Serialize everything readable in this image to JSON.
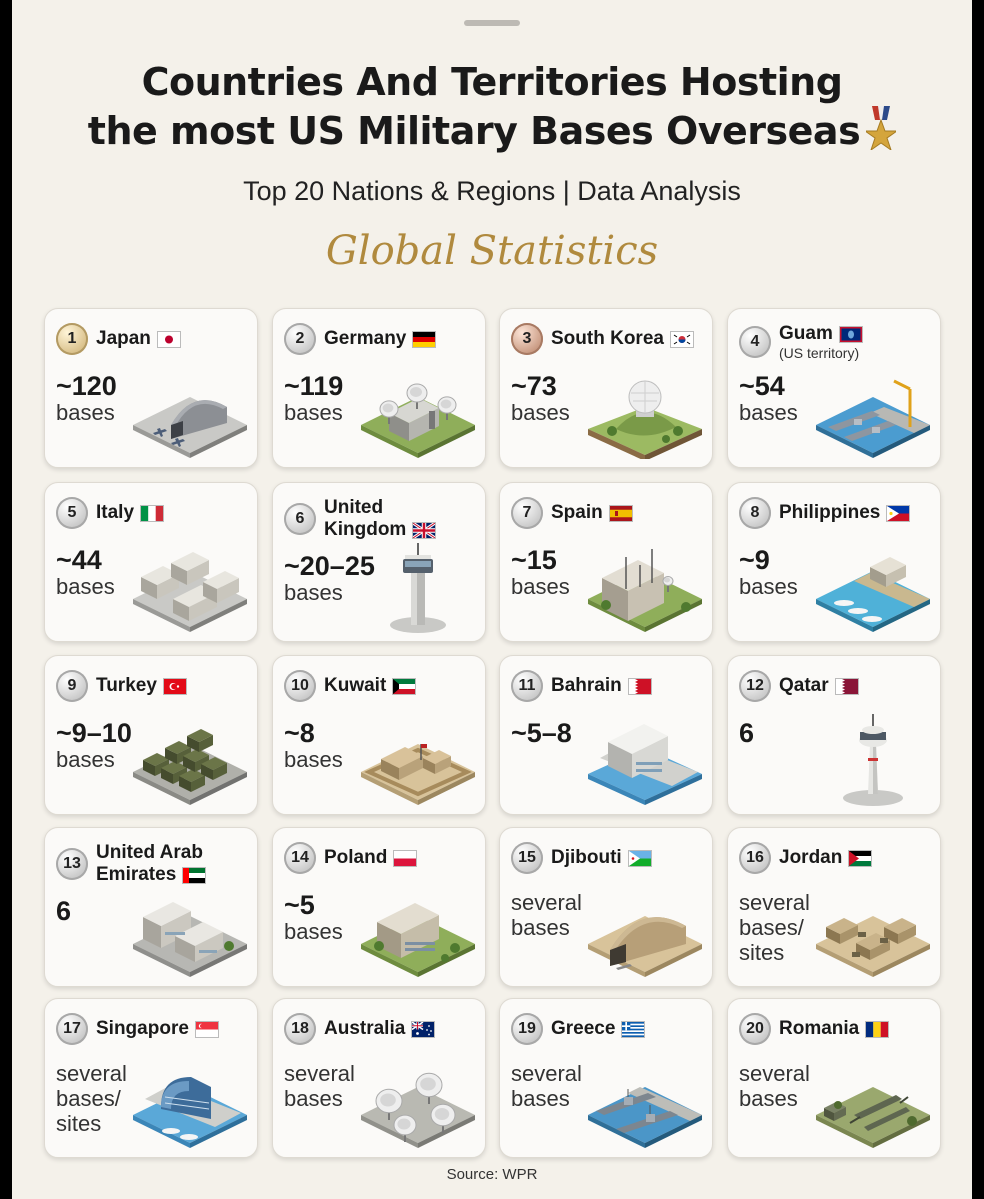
{
  "header": {
    "title_line1": "Countries And Territories Hosting",
    "title_line2": "the most US Military Bases Overseas",
    "medal_icon": "medal-icon",
    "subtitle": "Top 20 Nations & Regions | Data Analysis",
    "section_title": "Global Statistics"
  },
  "countries": [
    {
      "rank": "1",
      "name": "Japan",
      "value": "~120",
      "unit": "bases",
      "flag": "japan-flag",
      "scene": "hangar-jets"
    },
    {
      "rank": "2",
      "name": "Germany",
      "value": "~119",
      "unit": "bases",
      "flag": "germany-flag",
      "scene": "radar-base"
    },
    {
      "rank": "3",
      "name": "South Korea",
      "value": "~73",
      "unit": "bases",
      "flag": "south-korea-flag",
      "scene": "radome-hill"
    },
    {
      "rank": "4",
      "name": "Guam",
      "note": "(US territory)",
      "value": "~54",
      "unit": "bases",
      "flag": "guam-flag",
      "scene": "naval-port"
    },
    {
      "rank": "5",
      "name": "Italy",
      "value": "~44",
      "unit": "bases",
      "flag": "italy-flag",
      "scene": "barracks"
    },
    {
      "rank": "6",
      "name": "United",
      "name2": "Kingdom",
      "value": "~20–25",
      "unit": "bases",
      "flag": "uk-flag",
      "scene": "control-tower"
    },
    {
      "rank": "7",
      "name": "Spain",
      "value": "~15",
      "unit": "bases",
      "flag": "spain-flag",
      "scene": "comm-building"
    },
    {
      "rank": "8",
      "name": "Philippines",
      "value": "~9",
      "unit": "bases",
      "flag": "philippines-flag",
      "scene": "boat-dock"
    },
    {
      "rank": "9",
      "name": "Turkey",
      "value": "~9–10",
      "unit": "bases",
      "flag": "turkey-flag",
      "scene": "vehicle-depot"
    },
    {
      "rank": "10",
      "name": "Kuwait",
      "value": "~8",
      "unit": "bases",
      "flag": "kuwait-flag",
      "scene": "desert-compound"
    },
    {
      "rank": "11",
      "name": "Bahrain",
      "value": "~5–8",
      "unit": "",
      "flag": "bahrain-flag",
      "scene": "waterfront-hq"
    },
    {
      "rank": "12",
      "name": "Qatar",
      "value": "6",
      "unit": "",
      "flag": "qatar-flag",
      "scene": "air-tower"
    },
    {
      "rank": "13",
      "name": "United Arab",
      "name2": "Emirates",
      "value": "6",
      "unit": "",
      "flag": "uae-flag",
      "scene": "office-complex"
    },
    {
      "rank": "14",
      "name": "Poland",
      "value": "~5",
      "unit": "bases",
      "flag": "poland-flag",
      "scene": "green-building"
    },
    {
      "rank": "15",
      "name": "Djibouti",
      "text_lines": [
        "several",
        "bases"
      ],
      "flag": "djibouti-flag",
      "scene": "desert-hangar"
    },
    {
      "rank": "16",
      "name": "Jordan",
      "text_lines": [
        "several",
        "bases/",
        "sites"
      ],
      "flag": "jordan-flag",
      "scene": "desert-outpost"
    },
    {
      "rank": "17",
      "name": "Singapore",
      "text_lines": [
        "several",
        "bases/",
        "sites"
      ],
      "flag": "singapore-flag",
      "scene": "harbor-building"
    },
    {
      "rank": "18",
      "name": "Australia",
      "text_lines": [
        "several",
        "bases"
      ],
      "flag": "australia-flag",
      "scene": "satellite-dishes"
    },
    {
      "rank": "19",
      "name": "Greece",
      "text_lines": [
        "several",
        "bases"
      ],
      "flag": "greece-flag",
      "scene": "warships"
    },
    {
      "rank": "20",
      "name": "Romania",
      "text_lines": [
        "several",
        "bases"
      ],
      "flag": "romania-flag",
      "scene": "missile-site"
    }
  ],
  "footer": {
    "source": "Source: WPR"
  }
}
